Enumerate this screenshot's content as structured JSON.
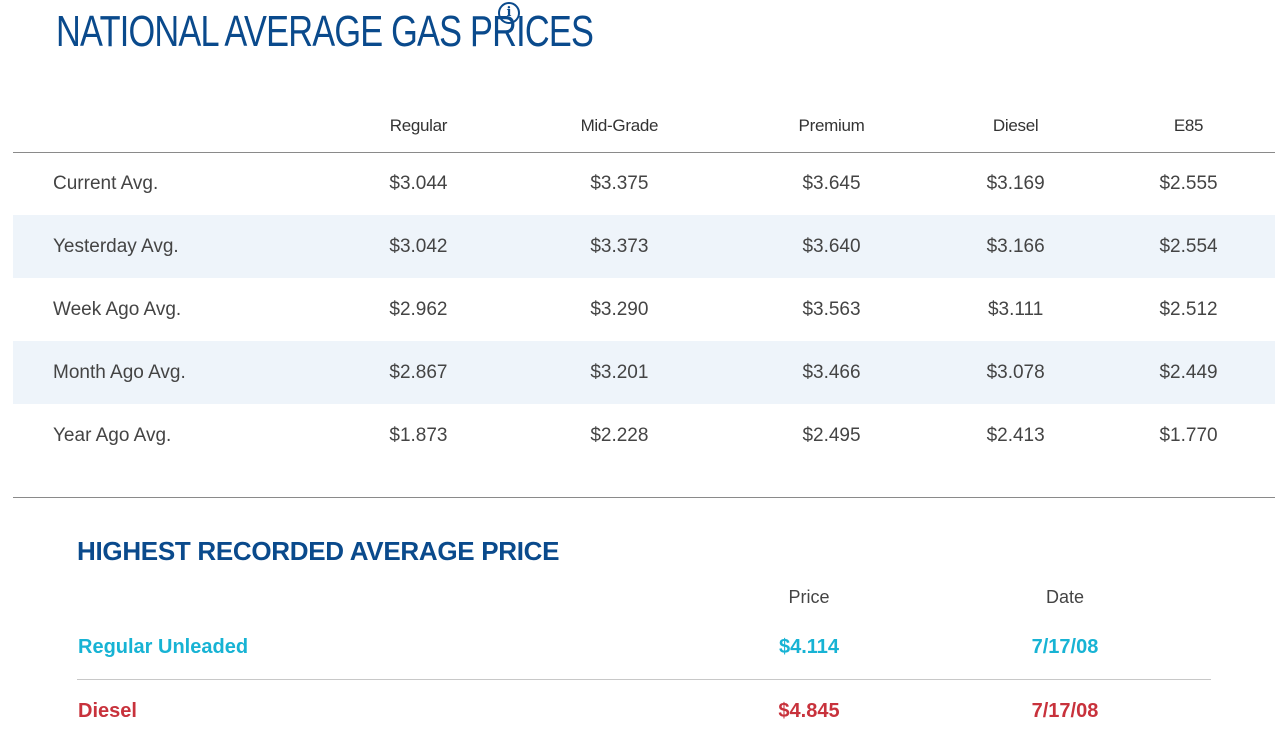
{
  "header": {
    "title": "NATIONAL AVERAGE GAS PRICES",
    "info_icon": "i"
  },
  "averages": {
    "columns": [
      "",
      "Regular",
      "Mid-Grade",
      "Premium",
      "Diesel",
      "E85"
    ],
    "rows": [
      {
        "label": "Current Avg.",
        "values": [
          "$3.044",
          "$3.375",
          "$3.645",
          "$3.169",
          "$2.555"
        ]
      },
      {
        "label": "Yesterday Avg.",
        "values": [
          "$3.042",
          "$3.373",
          "$3.640",
          "$3.166",
          "$2.554"
        ]
      },
      {
        "label": "Week Ago Avg.",
        "values": [
          "$2.962",
          "$3.290",
          "$3.563",
          "$3.111",
          "$2.512"
        ]
      },
      {
        "label": "Month Ago Avg.",
        "values": [
          "$2.867",
          "$3.201",
          "$3.466",
          "$3.078",
          "$2.449"
        ]
      },
      {
        "label": "Year Ago Avg.",
        "values": [
          "$1.873",
          "$2.228",
          "$2.495",
          "$2.413",
          "$1.770"
        ]
      }
    ]
  },
  "record": {
    "title": "HIGHEST RECORDED AVERAGE PRICE",
    "columns": [
      "",
      "Price",
      "Date"
    ],
    "rows": [
      {
        "fuel": "Regular Unleaded",
        "price": "$4.114",
        "date": "7/17/08"
      },
      {
        "fuel": "Diesel",
        "price": "$4.845",
        "date": "7/17/08"
      }
    ]
  },
  "colors": {
    "brand_blue": "#0a4a8c",
    "regular_cyan": "#17b3d4",
    "diesel_red": "#c8323c",
    "row_shade": "#eef4fa"
  }
}
